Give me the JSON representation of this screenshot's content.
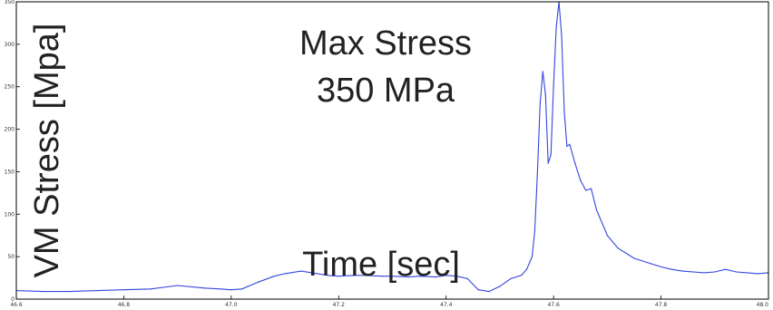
{
  "chart_data": {
    "type": "line",
    "title": "",
    "xlabel": "Time [sec]",
    "ylabel": "VM Stress [Mpa]",
    "annotation": {
      "line1": "Max Stress",
      "line2": "350 MPa"
    },
    "xlim": [
      46.6,
      48.0
    ],
    "ylim": [
      0,
      350
    ],
    "xticks": [
      "46.6",
      "46.8",
      "47.0",
      "47.2",
      "47.4",
      "47.6",
      "47.8",
      "48.0"
    ],
    "yticks": [
      "0",
      "50",
      "100",
      "150",
      "200",
      "250",
      "300",
      "350"
    ],
    "grid": false,
    "legend": "none",
    "series": [
      {
        "color": "#3344dd",
        "x": [
          46.6,
          46.65,
          46.7,
          46.75,
          46.8,
          46.85,
          46.9,
          46.95,
          46.98,
          47.0,
          47.02,
          47.05,
          47.08,
          47.1,
          47.13,
          47.15,
          47.18,
          47.2,
          47.23,
          47.25,
          47.28,
          47.3,
          47.33,
          47.35,
          47.38,
          47.4,
          47.42,
          47.44,
          47.46,
          47.48,
          47.5,
          47.52,
          47.54,
          47.55,
          47.56,
          47.565,
          47.57,
          47.575,
          47.58,
          47.585,
          47.59,
          47.595,
          47.6,
          47.605,
          47.61,
          47.615,
          47.62,
          47.625,
          47.63,
          47.64,
          47.65,
          47.66,
          47.67,
          47.68,
          47.7,
          47.72,
          47.75,
          47.78,
          47.8,
          47.82,
          47.84,
          47.86,
          47.88,
          47.9,
          47.92,
          47.94,
          47.96,
          47.98,
          48.0
        ],
        "y": [
          10,
          9,
          9,
          10,
          11,
          12,
          16,
          13,
          12,
          11,
          12,
          20,
          27,
          30,
          33,
          31,
          28,
          27,
          28,
          28,
          27,
          27,
          26,
          27,
          26,
          28,
          27,
          24,
          11,
          9,
          15,
          24,
          28,
          35,
          50,
          80,
          150,
          230,
          268,
          240,
          160,
          170,
          250,
          320,
          350,
          310,
          220,
          180,
          182,
          160,
          140,
          128,
          130,
          105,
          75,
          60,
          48,
          42,
          38,
          35,
          33,
          32,
          31,
          32,
          35,
          32,
          31,
          30,
          31
        ]
      }
    ]
  }
}
